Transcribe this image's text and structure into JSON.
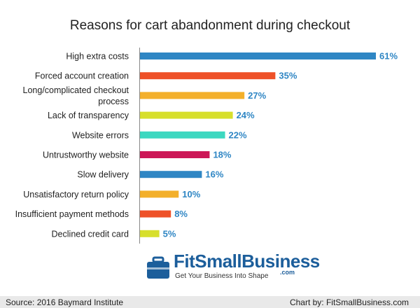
{
  "chart_data": {
    "type": "bar",
    "orientation": "horizontal",
    "title": "Reasons for cart abandonment during checkout",
    "categories": [
      [
        "High extra costs"
      ],
      [
        "Forced account creation"
      ],
      [
        "Long/complicated checkout",
        "process"
      ],
      [
        "Lack of transparency"
      ],
      [
        "Website errors"
      ],
      [
        "Untrustworthy website"
      ],
      [
        "Slow delivery"
      ],
      [
        "Unsatisfactory return policy"
      ],
      [
        "Insufficient payment methods"
      ],
      [
        "Declined credit card"
      ]
    ],
    "values": [
      61,
      35,
      27,
      24,
      22,
      18,
      16,
      10,
      8,
      5
    ],
    "value_labels": [
      "61%",
      "35%",
      "27%",
      "24%",
      "22%",
      "18%",
      "16%",
      "10%",
      "8%",
      "5%"
    ],
    "colors": [
      "#2f86c4",
      "#ee5128",
      "#f3b02b",
      "#d7df2c",
      "#3dd8c0",
      "#cc1757",
      "#2f86c4",
      "#f3b02b",
      "#ee5128",
      "#d7df2c"
    ],
    "xlim": [
      0,
      61
    ],
    "grid": false,
    "legend": false
  },
  "logo": {
    "name": "FitSmallBusiness",
    "suffix": ".com",
    "tagline": "Get Your Business Into Shape"
  },
  "footer": {
    "source": "Source: 2016 Baymard Institute",
    "credit": "Chart by: FitSmallBusiness.com"
  }
}
